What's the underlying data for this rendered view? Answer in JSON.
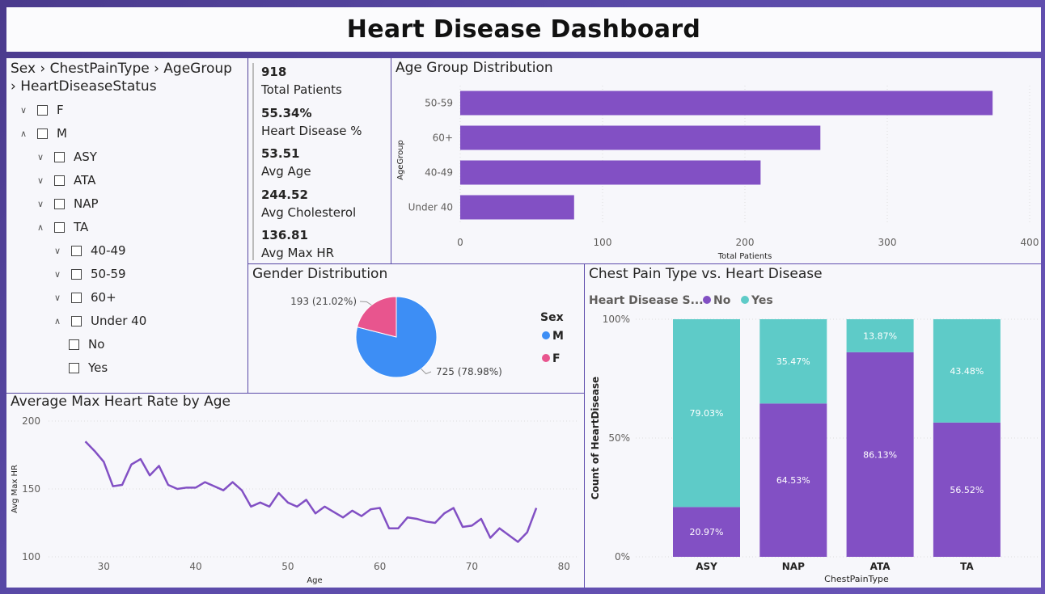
{
  "header": {
    "title": "Heart Disease Dashboard"
  },
  "slicer": {
    "title_line1": "Sex › ChestPainType › AgeGroup",
    "title_line2": "› HeartDiseaseStatus",
    "rows": [
      {
        "label": "F",
        "chev": "down",
        "level": 0
      },
      {
        "label": "M",
        "chev": "up",
        "level": 0
      },
      {
        "label": "ASY",
        "chev": "down",
        "level": 1
      },
      {
        "label": "ATA",
        "chev": "down",
        "level": 1
      },
      {
        "label": "NAP",
        "chev": "down",
        "level": 1
      },
      {
        "label": "TA",
        "chev": "up",
        "level": 1
      },
      {
        "label": "40-49",
        "chev": "down",
        "level": 2
      },
      {
        "label": "50-59",
        "chev": "down",
        "level": 2
      },
      {
        "label": "60+",
        "chev": "down",
        "level": 2
      },
      {
        "label": "Under 40",
        "chev": "up",
        "level": 2
      },
      {
        "label": "No",
        "chev": "none",
        "level": 3
      },
      {
        "label": "Yes",
        "chev": "none",
        "level": 3
      }
    ]
  },
  "cards": [
    {
      "value": "918",
      "label": "Total Patients"
    },
    {
      "value": "55.34%",
      "label": "Heart Disease %"
    },
    {
      "value": "53.51",
      "label": "Avg Age"
    },
    {
      "value": "244.52",
      "label": "Avg Cholesterol"
    },
    {
      "value": "136.81",
      "label": "Avg Max HR"
    }
  ],
  "chart_data": [
    {
      "id": "age",
      "type": "bar",
      "orientation": "horizontal",
      "title": "Age Group Distribution",
      "xlabel": "Total Patients",
      "ylabel": "AgeGroup",
      "categories": [
        "50-59",
        "60+",
        "40-49",
        "Under 40"
      ],
      "values": [
        374,
        253,
        211,
        80
      ],
      "xlim": [
        0,
        400
      ],
      "xticks": [
        0,
        100,
        200,
        300,
        400
      ],
      "grid": true,
      "color": "#8250c4"
    },
    {
      "id": "gender",
      "type": "pie",
      "title": "Gender Distribution",
      "legend_title": "Sex",
      "legend_position": "right",
      "slices": [
        {
          "name": "M",
          "value": 725,
          "label": "725 (78.98%)",
          "color": "#3d8ef5"
        },
        {
          "name": "F",
          "value": 193,
          "label": "193 (21.02%)",
          "color": "#e8558e"
        }
      ]
    },
    {
      "id": "chest",
      "type": "bar",
      "stacked_percent": true,
      "title": "Chest Pain Type vs. Heart Disease",
      "legend_title": "Heart Disease S...",
      "legend_position": "top-left",
      "xlabel": "ChestPainType",
      "ylabel": "Count of HeartDisease",
      "categories": [
        "ASY",
        "NAP",
        "ATA",
        "TA"
      ],
      "yticks": [
        "0%",
        "50%",
        "100%"
      ],
      "series": [
        {
          "name": "No",
          "color": "#8250c4",
          "values": [
            20.97,
            64.53,
            86.13,
            56.52
          ],
          "labels": [
            "20.97%",
            "64.53%",
            "86.13%",
            "56.52%"
          ]
        },
        {
          "name": "Yes",
          "color": "#5ecbc8",
          "values": [
            79.03,
            35.47,
            13.87,
            43.48
          ],
          "labels": [
            "79.03%",
            "35.47%",
            "13.87%",
            "43.48%"
          ]
        }
      ]
    },
    {
      "id": "line",
      "type": "line",
      "title": "Average Max Heart Rate by Age",
      "xlabel": "Age",
      "ylabel": "Avg Max HR",
      "xlim": [
        24,
        82
      ],
      "ylim": [
        100,
        200
      ],
      "xticks": [
        30,
        40,
        50,
        60,
        70,
        80
      ],
      "yticks": [
        100,
        150,
        200
      ],
      "grid": true,
      "color": "#8250c4",
      "x": [
        28,
        29,
        30,
        31,
        32,
        33,
        34,
        35,
        36,
        37,
        38,
        39,
        40,
        41,
        42,
        43,
        44,
        45,
        46,
        47,
        48,
        49,
        50,
        51,
        52,
        53,
        54,
        55,
        56,
        57,
        58,
        59,
        60,
        61,
        62,
        63,
        64,
        65,
        66,
        67,
        68,
        69,
        70,
        71,
        72,
        73,
        74,
        75,
        76,
        77
      ],
      "y": [
        185,
        178,
        170,
        152,
        153,
        168,
        172,
        160,
        167,
        153,
        150,
        151,
        151,
        155,
        152,
        149,
        155,
        149,
        137,
        140,
        137,
        147,
        140,
        137,
        142,
        132,
        137,
        133,
        129,
        134,
        130,
        135,
        136,
        121,
        121,
        129,
        128,
        126,
        125,
        132,
        136,
        122,
        123,
        128,
        114,
        121,
        116,
        111,
        118,
        136
      ]
    }
  ]
}
